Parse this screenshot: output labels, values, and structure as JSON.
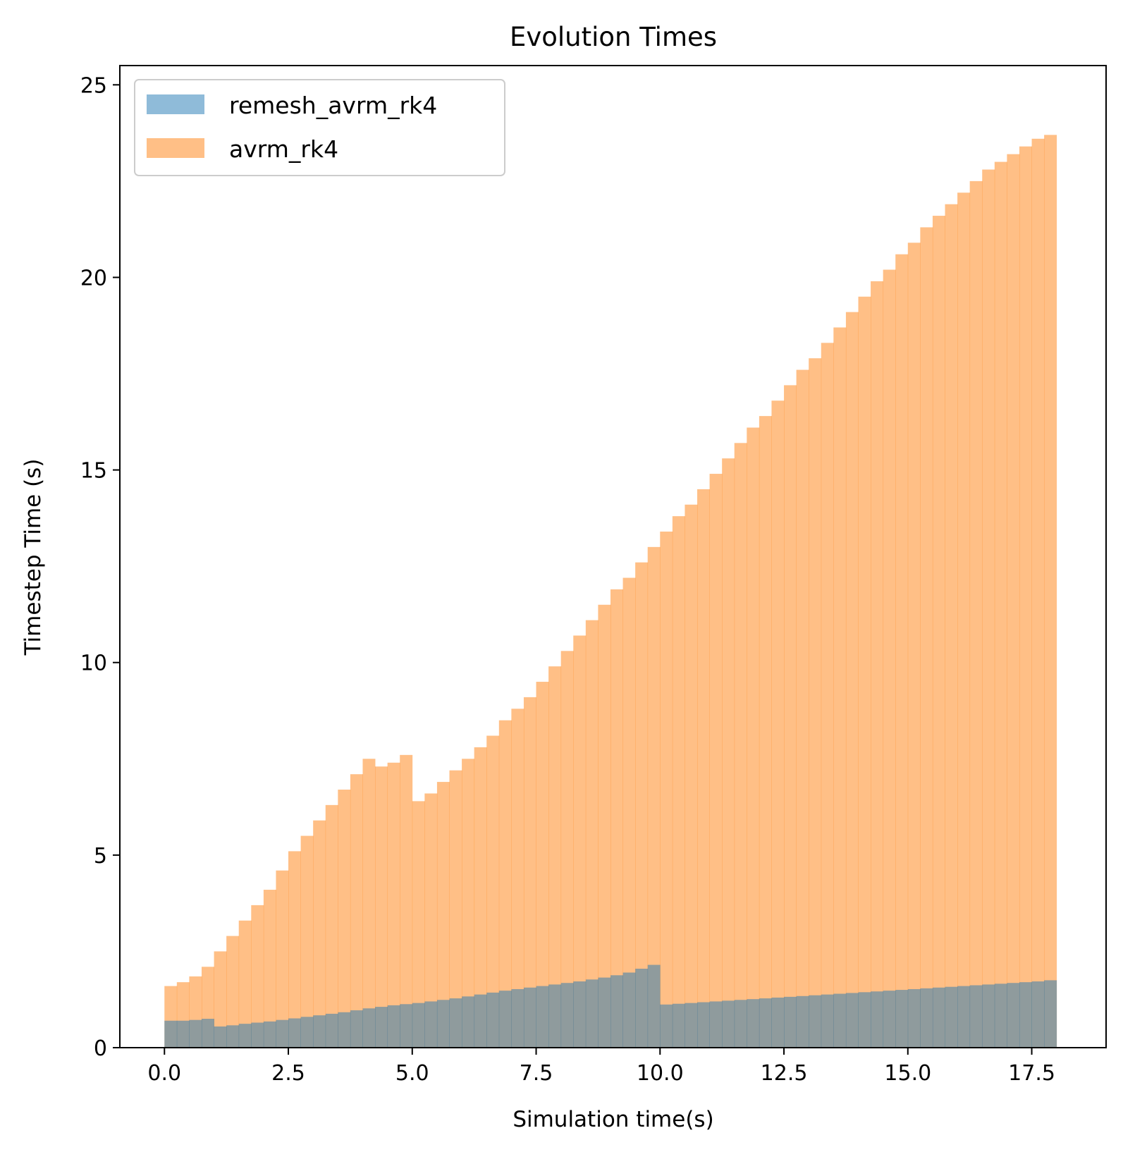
{
  "chart_data": {
    "type": "bar",
    "title": "Evolution Times",
    "xlabel": "Simulation time(s)",
    "ylabel": "Timestep Time (s)",
    "xlim": [
      -0.9,
      19.0
    ],
    "ylim": [
      0,
      25.5
    ],
    "xticks": [
      0.0,
      2.5,
      5.0,
      7.5,
      10.0,
      12.5,
      15.0,
      17.5
    ],
    "xtick_labels": [
      "0.0",
      "2.5",
      "5.0",
      "7.5",
      "10.0",
      "12.5",
      "15.0",
      "17.5"
    ],
    "yticks": [
      0,
      5,
      10,
      15,
      20,
      25
    ],
    "ytick_labels": [
      "0",
      "5",
      "10",
      "15",
      "20",
      "25"
    ],
    "grid": false,
    "legend_position": "top-left",
    "bar_step": 0.25,
    "series": [
      {
        "name": "remesh_avrm_rk4",
        "color": "#1f77b4",
        "opacity": 0.5,
        "x": [
          0.0,
          0.25,
          0.5,
          0.75,
          1.0,
          1.25,
          1.5,
          1.75,
          2.0,
          2.25,
          2.5,
          2.75,
          3.0,
          3.25,
          3.5,
          3.75,
          4.0,
          4.25,
          4.5,
          4.75,
          5.0,
          5.25,
          5.5,
          5.75,
          6.0,
          6.25,
          6.5,
          6.75,
          7.0,
          7.25,
          7.5,
          7.75,
          8.0,
          8.25,
          8.5,
          8.75,
          9.0,
          9.25,
          9.5,
          9.75,
          10.0,
          10.25,
          10.5,
          10.75,
          11.0,
          11.25,
          11.5,
          11.75,
          12.0,
          12.25,
          12.5,
          12.75,
          13.0,
          13.25,
          13.5,
          13.75,
          14.0,
          14.25,
          14.5,
          14.75,
          15.0,
          15.25,
          15.5,
          15.75,
          16.0,
          16.25,
          16.5,
          16.75,
          17.0,
          17.25,
          17.5,
          17.75
        ],
        "values": [
          0.7,
          0.7,
          0.72,
          0.75,
          0.55,
          0.58,
          0.62,
          0.65,
          0.68,
          0.72,
          0.76,
          0.8,
          0.84,
          0.88,
          0.92,
          0.97,
          1.02,
          1.06,
          1.1,
          1.13,
          1.16,
          1.2,
          1.24,
          1.28,
          1.33,
          1.38,
          1.43,
          1.48,
          1.52,
          1.56,
          1.6,
          1.64,
          1.68,
          1.72,
          1.77,
          1.82,
          1.88,
          1.95,
          2.05,
          2.15,
          1.12,
          1.14,
          1.16,
          1.18,
          1.2,
          1.22,
          1.24,
          1.26,
          1.28,
          1.3,
          1.32,
          1.34,
          1.36,
          1.38,
          1.4,
          1.42,
          1.44,
          1.46,
          1.48,
          1.5,
          1.52,
          1.54,
          1.56,
          1.58,
          1.6,
          1.62,
          1.64,
          1.66,
          1.68,
          1.7,
          1.72,
          1.75
        ]
      },
      {
        "name": "avrm_rk4",
        "color": "#ff7f0e",
        "opacity": 0.5,
        "x": [
          0.0,
          0.25,
          0.5,
          0.75,
          1.0,
          1.25,
          1.5,
          1.75,
          2.0,
          2.25,
          2.5,
          2.75,
          3.0,
          3.25,
          3.5,
          3.75,
          4.0,
          4.25,
          4.5,
          4.75,
          5.0,
          5.25,
          5.5,
          5.75,
          6.0,
          6.25,
          6.5,
          6.75,
          7.0,
          7.25,
          7.5,
          7.75,
          8.0,
          8.25,
          8.5,
          8.75,
          9.0,
          9.25,
          9.5,
          9.75,
          10.0,
          10.25,
          10.5,
          10.75,
          11.0,
          11.25,
          11.5,
          11.75,
          12.0,
          12.25,
          12.5,
          12.75,
          13.0,
          13.25,
          13.5,
          13.75,
          14.0,
          14.25,
          14.5,
          14.75,
          15.0,
          15.25,
          15.5,
          15.75,
          16.0,
          16.25,
          16.5,
          16.75,
          17.0,
          17.25,
          17.5,
          17.75
        ],
        "values": [
          1.6,
          1.7,
          1.85,
          2.1,
          2.5,
          2.9,
          3.3,
          3.7,
          4.1,
          4.6,
          5.1,
          5.5,
          5.9,
          6.3,
          6.7,
          7.1,
          7.5,
          7.3,
          7.4,
          7.6,
          6.4,
          6.6,
          6.9,
          7.2,
          7.5,
          7.8,
          8.1,
          8.5,
          8.8,
          9.1,
          9.5,
          9.9,
          10.3,
          10.7,
          11.1,
          11.5,
          11.9,
          12.2,
          12.6,
          13.0,
          13.4,
          13.8,
          14.1,
          14.5,
          14.9,
          15.3,
          15.7,
          16.1,
          16.4,
          16.8,
          17.2,
          17.6,
          17.9,
          18.3,
          18.7,
          19.1,
          19.5,
          19.9,
          20.2,
          20.6,
          20.9,
          21.3,
          21.6,
          21.9,
          22.2,
          22.5,
          22.8,
          23.0,
          23.2,
          23.4,
          23.6,
          23.7
        ]
      }
    ]
  }
}
